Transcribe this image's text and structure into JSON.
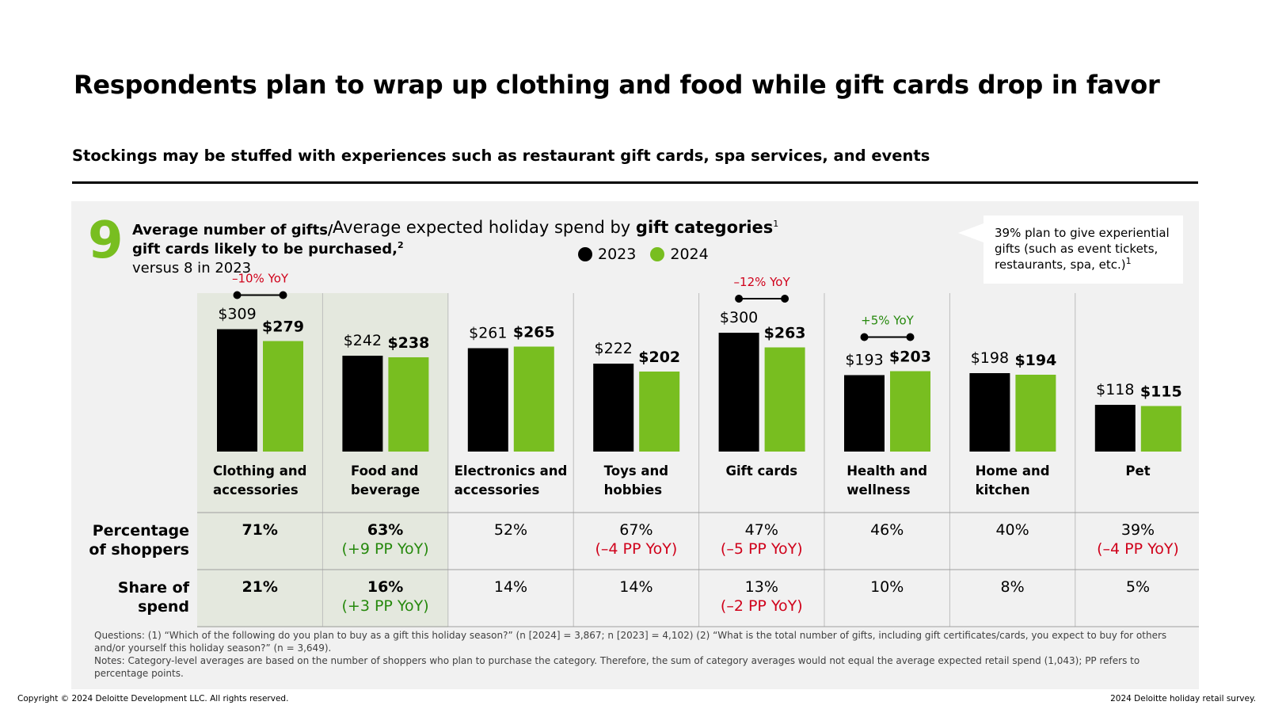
{
  "title": "Respondents plan to wrap up clothing and food while gift cards drop in favor",
  "subtitle": "Stockings may be stuffed with experiences such as restaurant gift cards, spa services, and events",
  "gifts": {
    "number": "9",
    "line1": "Average number of gifts/",
    "line2": "gift cards likely to be purchased,",
    "line2_sup": "2",
    "line3": "versus 8 in 2023"
  },
  "callout": {
    "line1": "39% plan to give experiential",
    "line2": "gifts (such as event tickets,",
    "line3": "restaurants, spa, etc.)",
    "sup": "1"
  },
  "rows": {
    "pct_label_1": "Percentage",
    "pct_label_2": "of shoppers",
    "share_label_1": "Share of",
    "share_label_2": "spend"
  },
  "colors": {
    "y2023": "#000000",
    "y2024": "#78be20",
    "negative": "#d0021b",
    "positive": "#26890d",
    "panel": "#f1f1f1",
    "highlight": "#e4e8de"
  },
  "chart_data": {
    "type": "bar",
    "title_prefix": "Average expected holiday spend by ",
    "title_bold": "gift categories",
    "title_sup": "1",
    "legend": [
      "2023",
      "2024"
    ],
    "ylim": [
      0,
      320
    ],
    "categories": [
      {
        "label_1": "Clothing and",
        "label_2": "accessories",
        "v2023": 309,
        "v2024": 279,
        "l2023": "$309",
        "l2024": "$279",
        "yoy": "–10% YoY",
        "yoy_sign": "neg",
        "pct": "71%",
        "pct_bold": true,
        "pct_change": "",
        "pct_sign": "",
        "share": "21%",
        "share_bold": true,
        "share_change": "",
        "share_sign": "",
        "highlight": true
      },
      {
        "label_1": "Food and",
        "label_2": "beverage",
        "v2023": 242,
        "v2024": 238,
        "l2023": "$242",
        "l2024": "$238",
        "yoy": "",
        "yoy_sign": "",
        "pct": "63%",
        "pct_bold": true,
        "pct_change": "(+9 PP YoY)",
        "pct_sign": "pos",
        "share": "16%",
        "share_bold": true,
        "share_change": "(+3 PP YoY)",
        "share_sign": "pos",
        "highlight": true
      },
      {
        "label_1": "Electronics and",
        "label_2": "accessories",
        "v2023": 261,
        "v2024": 265,
        "l2023": "$261",
        "l2024": "$265",
        "yoy": "",
        "yoy_sign": "",
        "pct": "52%",
        "pct_bold": false,
        "pct_change": "",
        "pct_sign": "",
        "share": "14%",
        "share_bold": false,
        "share_change": "",
        "share_sign": "",
        "highlight": false
      },
      {
        "label_1": "Toys and",
        "label_2": "hobbies",
        "v2023": 222,
        "v2024": 202,
        "l2023": "$222",
        "l2024": "$202",
        "yoy": "",
        "yoy_sign": "",
        "pct": "67%",
        "pct_bold": false,
        "pct_change": "(–4 PP YoY)",
        "pct_sign": "neg",
        "share": "14%",
        "share_bold": false,
        "share_change": "",
        "share_sign": "",
        "highlight": false
      },
      {
        "label_1": "Gift cards",
        "label_2": "",
        "v2023": 300,
        "v2024": 263,
        "l2023": "$300",
        "l2024": "$263",
        "yoy": "–12% YoY",
        "yoy_sign": "neg",
        "pct": "47%",
        "pct_bold": false,
        "pct_change": "(–5 PP YoY)",
        "pct_sign": "neg",
        "share": "13%",
        "share_bold": false,
        "share_change": "(–2 PP YoY)",
        "share_sign": "neg",
        "highlight": false
      },
      {
        "label_1": "Health and",
        "label_2": "wellness",
        "v2023": 193,
        "v2024": 203,
        "l2023": "$193",
        "l2024": "$203",
        "yoy": "+5% YoY",
        "yoy_sign": "pos",
        "pct": "46%",
        "pct_bold": false,
        "pct_change": "",
        "pct_sign": "",
        "share": "10%",
        "share_bold": false,
        "share_change": "",
        "share_sign": "",
        "highlight": false
      },
      {
        "label_1": "Home and",
        "label_2": "kitchen",
        "v2023": 198,
        "v2024": 194,
        "l2023": "$198",
        "l2024": "$194",
        "yoy": "",
        "yoy_sign": "",
        "pct": "40%",
        "pct_bold": false,
        "pct_change": "",
        "pct_sign": "",
        "share": "8%",
        "share_bold": false,
        "share_change": "",
        "share_sign": "",
        "highlight": false
      },
      {
        "label_1": "Pet",
        "label_2": "",
        "v2023": 118,
        "v2024": 115,
        "l2023": "$118",
        "l2024": "$115",
        "yoy": "",
        "yoy_sign": "",
        "pct": "39%",
        "pct_bold": false,
        "pct_change": "(–4 PP YoY)",
        "pct_sign": "neg",
        "share": "5%",
        "share_bold": false,
        "share_change": "",
        "share_sign": "",
        "highlight": false
      }
    ]
  },
  "footnotes": {
    "questions": "Questions: (1) “Which of the following do you plan to buy as a gift this holiday season?” (n [2024] = 3,867; n [2023] = 4,102) (2) “What is the total number of gifts, including gift certificates/cards, you expect to buy for others and/or yourself this holiday season?” (n = 3,649).",
    "notes": "Notes: Category-level averages are based on the number of shoppers who plan to purchase the category. Therefore, the sum of category averages would not equal the average expected retail spend (1,043); PP refers to percentage points."
  },
  "copyright": "Copyright © 2024 Deloitte Development LLC. All rights reserved.",
  "source": "2024 Deloitte holiday retail survey."
}
